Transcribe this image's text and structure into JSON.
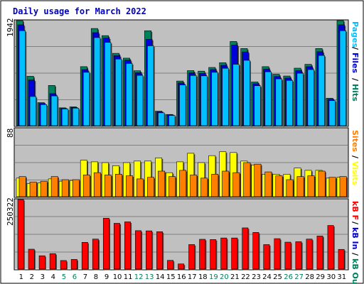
{
  "chart_title": "Daily usage for March 2022",
  "colors": {
    "hits": "#00805c",
    "files": "#0000d8",
    "pages": "#00c0ff",
    "visits": "#ffff00",
    "sites": "#ff8000",
    "kb_in": "#00805c",
    "kb_out": "#0000d8",
    "kb_f": "#ff0000",
    "weekend_day_label": "#00805c",
    "day_label": "#000000",
    "sep": "#000000"
  },
  "panels": {
    "usage": {
      "ymax_label": "1942",
      "right_labels": [
        {
          "text": "Pages",
          "color": "#00c0ff"
        },
        {
          "text": "/",
          "color": "#000000"
        },
        {
          "text": "Files",
          "color": "#0000d8"
        },
        {
          "text": "/",
          "color": "#000000"
        },
        {
          "text": "Hits",
          "color": "#00805c"
        }
      ]
    },
    "visits": {
      "ymax_label": "88",
      "right_labels": [
        {
          "text": "Sites",
          "color": "#ff8000"
        },
        {
          "text": "/",
          "color": "#000000"
        },
        {
          "text": "Visits",
          "color": "#ffff00"
        }
      ]
    },
    "kbytes": {
      "ymax_label": "250322",
      "right_labels": [
        {
          "text": "kB F",
          "color": "#ff0000"
        },
        {
          "text": "/",
          "color": "#000000"
        },
        {
          "text": "kB In",
          "color": "#0000d8"
        },
        {
          "text": "/",
          "color": "#000000"
        },
        {
          "text": "kB Out",
          "color": "#00805c"
        }
      ]
    }
  },
  "chart_data": {
    "type": "bar",
    "title": "Daily usage for March 2022",
    "categories": [
      "1",
      "2",
      "3",
      "4",
      "5",
      "6",
      "7",
      "8",
      "9",
      "10",
      "11",
      "12",
      "13",
      "14",
      "15",
      "16",
      "17",
      "18",
      "19",
      "20",
      "21",
      "22",
      "23",
      "24",
      "25",
      "26",
      "27",
      "28",
      "29",
      "30",
      "31"
    ],
    "weekend_days": [
      "5",
      "6",
      "12",
      "13",
      "19",
      "20",
      "26",
      "27"
    ],
    "usage": {
      "ylim": [
        0,
        1942
      ],
      "series": [
        {
          "name": "Hits",
          "values": [
            1942,
            913,
            426,
            744,
            330,
            348,
            1091,
            1796,
            1664,
            1337,
            1248,
            1015,
            1754,
            268,
            207,
            825,
            1018,
            1008,
            1076,
            1164,
            1556,
            1426,
            808,
            1091,
            951,
            918,
            1063,
            1134,
            1426,
            508,
            1942
          ]
        },
        {
          "name": "Files",
          "values": [
            1864,
            844,
            410,
            592,
            320,
            337,
            1036,
            1719,
            1620,
            1294,
            1209,
            978,
            1596,
            255,
            200,
            791,
            975,
            967,
            1036,
            1115,
            1491,
            1363,
            776,
            1047,
            909,
            880,
            1018,
            1090,
            1367,
            487,
            1864
          ]
        },
        {
          "name": "Pages",
          "values": [
            1756,
            539,
            390,
            550,
            310,
            325,
            986,
            1628,
            1539,
            1231,
            1150,
            930,
            1477,
            238,
            190,
            752,
            928,
            921,
            986,
            1061,
            1135,
            1208,
            738,
            996,
            865,
            837,
            969,
            1037,
            1298,
            463,
            1756
          ]
        }
      ]
    },
    "visits": {
      "ylim": [
        0,
        88
      ],
      "series": [
        {
          "name": "Visits",
          "values": [
            24,
            17,
            18,
            23,
            20,
            21,
            47,
            45,
            44,
            40,
            44,
            46,
            46,
            50,
            31,
            45,
            56,
            44,
            53,
            58,
            57,
            46,
            41,
            29,
            29,
            29,
            37,
            34,
            34,
            24,
            25
          ]
        },
        {
          "name": "Sites",
          "values": [
            26,
            19,
            20,
            26,
            22,
            22,
            28,
            31,
            28,
            29,
            27,
            23,
            25,
            33,
            26,
            34,
            28,
            24,
            29,
            33,
            31,
            44,
            42,
            32,
            27,
            22,
            26,
            27,
            33,
            25,
            26
          ]
        }
      ]
    },
    "kbytes": {
      "ylim": [
        0,
        250322
      ],
      "series": [
        {
          "name": "kB F",
          "values": [
            250322,
            71600,
            48000,
            55600,
            30900,
            34900,
            96300,
            108000,
            183000,
            164800,
            170000,
            138300,
            137600,
            134500,
            31400,
            18600,
            88300,
            107300,
            106300,
            112000,
            112000,
            148300,
            132000,
            88200,
            109600,
            97000,
            98600,
            108000,
            119000,
            157000,
            70900
          ]
        }
      ]
    }
  }
}
